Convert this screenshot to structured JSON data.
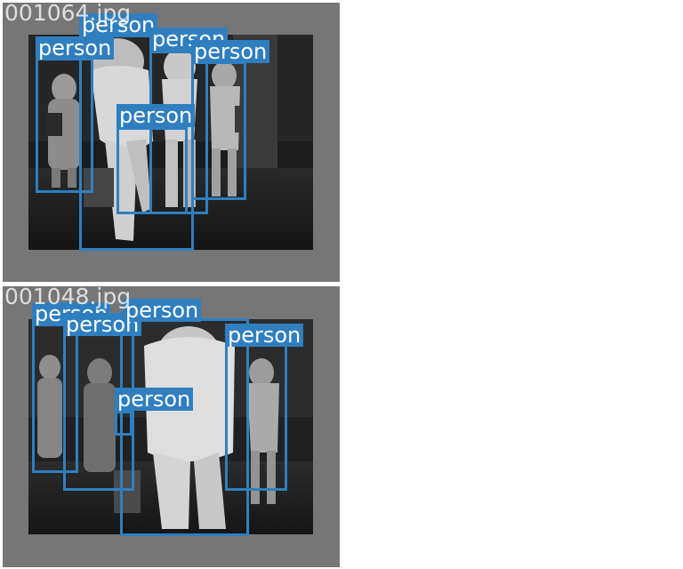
{
  "panels": [
    {
      "filename": "001064.jpg",
      "class_label": "person",
      "detections": [
        "person",
        "person",
        "person",
        "person",
        "person"
      ]
    },
    {
      "filename": "001048.jpg",
      "class_label": "person",
      "detections": [
        "person",
        "person",
        "person",
        "person",
        "person"
      ]
    }
  ],
  "colors": {
    "box": "#2f7fc0",
    "panel_background": "#767676",
    "label_text": "#ffffff"
  }
}
